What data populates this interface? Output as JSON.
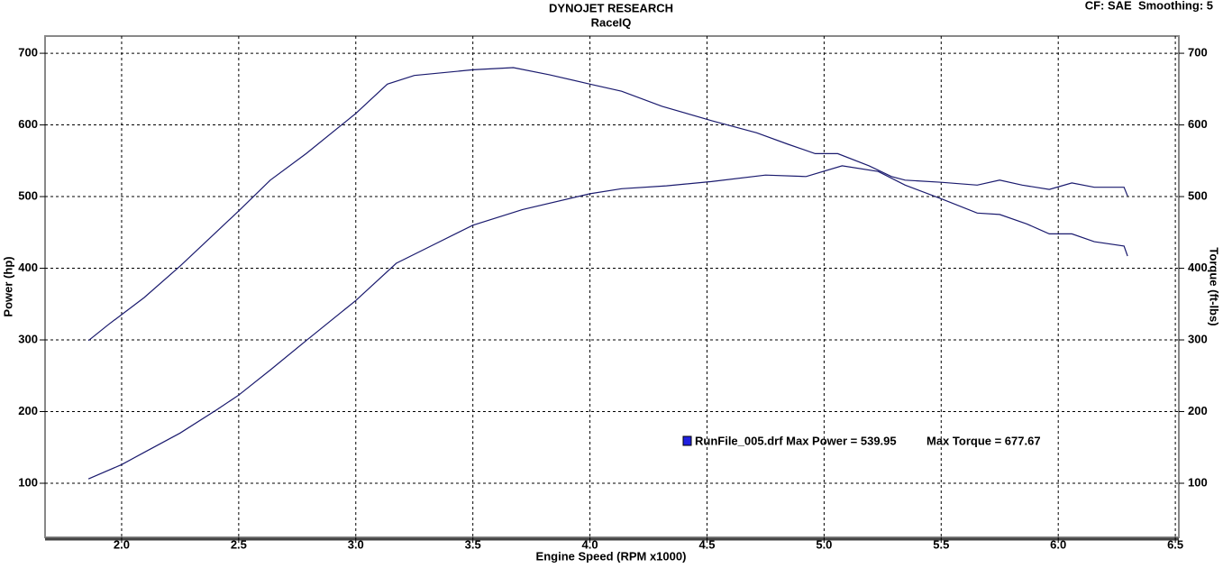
{
  "chart_data": {
    "type": "line",
    "title": "DYNOJET RESEARCH",
    "subtitle": "RaceIQ",
    "corner_note": "CF: SAE  Smoothing: 5",
    "x_label": "Engine Speed (RPM x1000)",
    "y_label": "Power (hp)",
    "y2_label": "Torque (ft-lbs)",
    "legend": {
      "text": "RunFile_005.drf Max Power = 539.95",
      "text2": "Max Torque = 677.67",
      "color": "#2020e0"
    },
    "xlim": [
      1.673,
      6.515
    ],
    "xticks": [
      {
        "value": 2,
        "label": "2.0"
      },
      2.5,
      {
        "value": 3,
        "label": "3.0"
      },
      3.5,
      {
        "value": 4,
        "label": "4.0"
      },
      4.5,
      {
        "value": 5,
        "label": "5.0"
      },
      5.5,
      {
        "value": 6,
        "label": "6.0"
      },
      6.5
    ],
    "ylim": [
      24.5,
      724
    ],
    "yticks": [
      100,
      200,
      300,
      400,
      500,
      600,
      700
    ],
    "y2lim": [
      24.5,
      724
    ],
    "y2ticks": [
      100,
      200,
      300,
      400,
      500,
      600,
      700
    ],
    "grid": true,
    "series": [
      {
        "color": "#1a1a6e",
        "x": [
          1.858,
          2.0,
          2.096,
          2.25,
          2.404,
          2.5,
          2.635,
          2.788,
          3.0,
          3.173,
          3.327,
          3.5,
          3.712,
          4.0,
          4.135,
          4.327,
          4.519,
          4.75,
          4.923,
          5.077,
          5.231,
          5.346,
          5.5,
          5.654,
          5.75,
          5.865,
          5.962,
          6.058,
          6.154,
          6.281,
          6.296
        ],
        "values": [
          106,
          126,
          143,
          170,
          202,
          223,
          258,
          299,
          355,
          407,
          432,
          460,
          482,
          504,
          511,
          515,
          521,
          530,
          528,
          543,
          535,
          516,
          497,
          477,
          475,
          462,
          448,
          448,
          437,
          431,
          417
        ]
      },
      {
        "color": "#1a1a6e",
        "axis": "y2",
        "x": [
          1.858,
          1.942,
          2.096,
          2.25,
          2.5,
          2.635,
          2.788,
          3.0,
          3.135,
          3.25,
          3.5,
          3.673,
          3.827,
          4.0,
          4.135,
          4.308,
          4.519,
          4.712,
          4.846,
          4.962,
          5.058,
          5.192,
          5.288,
          5.346,
          5.5,
          5.654,
          5.75,
          5.846,
          5.962,
          6.058,
          6.154,
          6.281,
          6.296
        ],
        "values": [
          299,
          321,
          359,
          403,
          480,
          523,
          560,
          616,
          657,
          669,
          677,
          680,
          670,
          657,
          647,
          626,
          606,
          589,
          573,
          560,
          560,
          543,
          528,
          523,
          520,
          516,
          523,
          516,
          510,
          519,
          513,
          513,
          501
        ]
      }
    ]
  }
}
